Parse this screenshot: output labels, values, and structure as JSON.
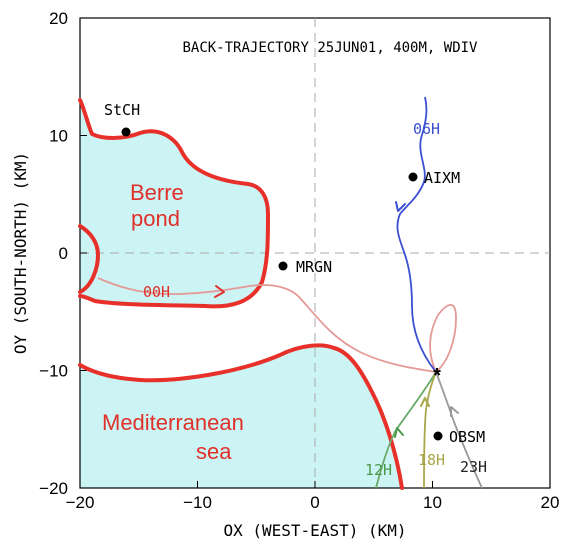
{
  "title": "BACK-TRAJECTORY 25JUN01, 400M, WDIV",
  "axes": {
    "xlabel": "OX (WEST-EAST) (KM)",
    "ylabel": "OY (SOUTH-NORTH) (KM)",
    "x_ticks": [
      "−20",
      "−10",
      "0",
      "10",
      "20"
    ],
    "y_ticks": [
      "20",
      "10",
      "0",
      "−10",
      "−20"
    ],
    "xlim": [
      -20,
      20
    ],
    "ylim": [
      -20,
      20
    ]
  },
  "regions": {
    "pond_label_1": "Berre",
    "pond_label_2": "pond",
    "sea_label_1": "Mediterranean",
    "sea_label_2": "sea"
  },
  "stations": [
    {
      "name": "StCH",
      "x": -16.5,
      "y": 10.2
    },
    {
      "name": "AIXM",
      "x": 8.2,
      "y": 6.4
    },
    {
      "name": "MRGN",
      "x": -2.8,
      "y": -1.1
    },
    {
      "name": "OBSM",
      "x": 10.5,
      "y": -15.6
    }
  ],
  "trajectories": [
    {
      "label": "06H",
      "color": "#3b4fd1"
    },
    {
      "label": "00H",
      "color": "#e08c8c"
    },
    {
      "label": "12H",
      "color": "#6aaa6a"
    },
    {
      "label": "18H",
      "color": "#a8a84a"
    },
    {
      "label": "23H",
      "color": "#9a9a9a"
    }
  ],
  "colors": {
    "coast": "#e8302a",
    "water": "#cdf4f4",
    "text_red": "#e0302a"
  },
  "marker": "*"
}
